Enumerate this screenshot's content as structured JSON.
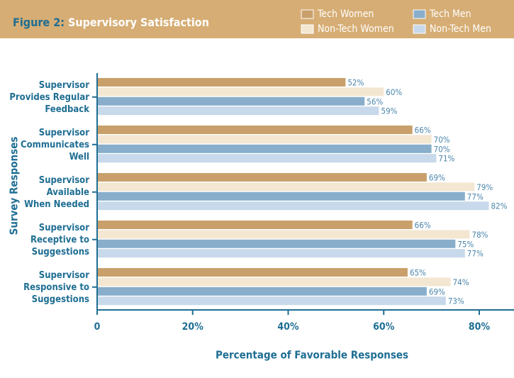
{
  "chart_data": {
    "type": "hbar",
    "title_prefix": "Figure 2:",
    "title": "Supervisory Satisfaction",
    "y_label": "Survey Responses",
    "x_label": "Percentage of Favorable Responses",
    "categories": [
      "Supervisor\nProvides Regular\nFeedback",
      "Supervisor\nCommunicates\nWell",
      "Supervisor\nAvailable\nWhen Needed",
      "Supervisor\nReceptive to\nSuggestions",
      "Supervisor\nResponsive to\nSuggestions"
    ],
    "series": [
      {
        "name": "Tech Women",
        "color": "#c9a06b",
        "values": [
          52,
          66,
          69,
          66,
          65
        ],
        "value_labels": [
          "52%",
          "66%",
          "69%",
          "66%",
          "65%"
        ]
      },
      {
        "name": "Non-Tech Women",
        "color": "#f3e7d2",
        "values": [
          60,
          70,
          79,
          78,
          74
        ],
        "value_labels": [
          "60%",
          "70%",
          "79%",
          "78%",
          "74%"
        ]
      },
      {
        "name": "Tech Men",
        "color": "#88aecb",
        "values": [
          56,
          70,
          77,
          75,
          69
        ],
        "value_labels": [
          "56%",
          "70%",
          "77%",
          "75%",
          "69%"
        ]
      },
      {
        "name": "Non-Tech Men",
        "color": "#c7d9ea",
        "values": [
          59,
          71,
          82,
          77,
          73
        ],
        "value_labels": [
          "59%",
          "71%",
          "82%",
          "77%",
          "73%"
        ]
      }
    ],
    "xlim": [
      0,
      80
    ],
    "xticks": [
      0,
      {
        "value": 20,
        "label": "20%"
      },
      {
        "value": 40,
        "label": "40%"
      },
      {
        "value": 60,
        "label": "60%"
      },
      {
        "value": 80,
        "label": "80%"
      }
    ]
  }
}
